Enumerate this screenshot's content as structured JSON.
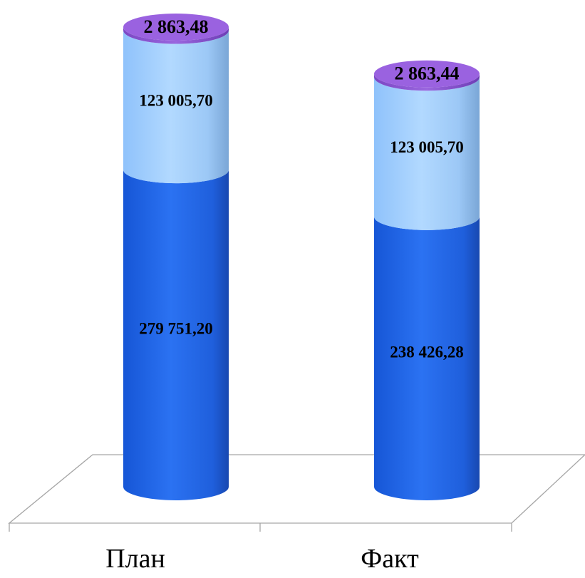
{
  "chart_data": {
    "type": "bar",
    "stacked": true,
    "three_d": true,
    "bar_shape": "cylinder",
    "categories": [
      "План",
      "Факт"
    ],
    "series": [
      {
        "values": [
          279751.2,
          238426.28
        ],
        "labels": [
          "279 751,20",
          "238 426,28"
        ],
        "color": "#1f63e6"
      },
      {
        "values": [
          123005.7,
          123005.7
        ],
        "labels": [
          "123 005,70",
          "123 005,70"
        ],
        "color": "#9ccbff"
      },
      {
        "values": [
          2863.48,
          2863.44
        ],
        "labels": [
          "2 863,48",
          "2 863,44"
        ],
        "color": "#8a55d0"
      }
    ],
    "legend": "none",
    "grid": false,
    "gridlines": false,
    "title": "",
    "xlabel": "",
    "ylabel": ""
  }
}
